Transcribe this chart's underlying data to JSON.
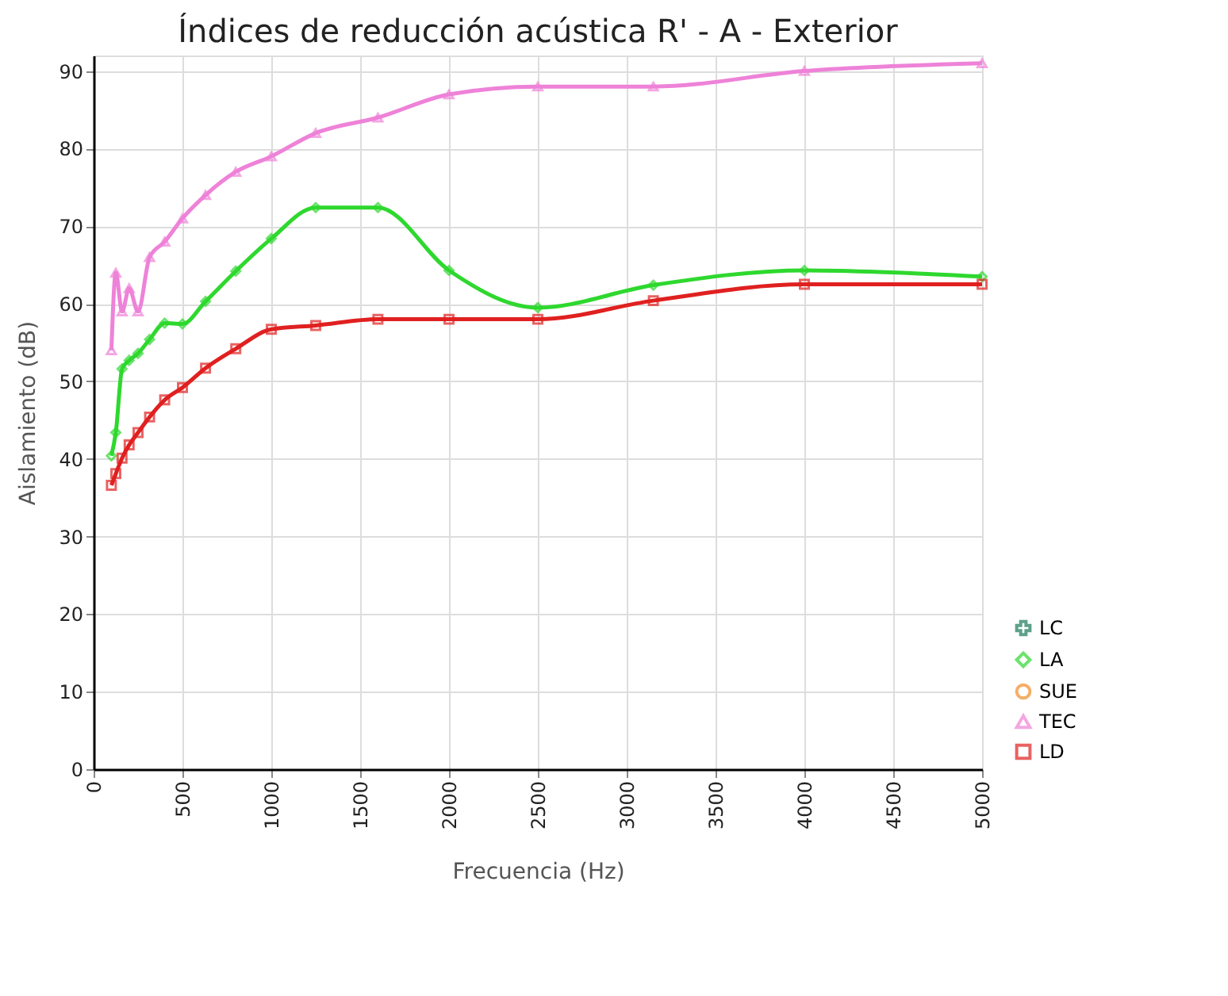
{
  "chart_data": {
    "type": "line",
    "title": "Índices de reducción acústica R' - A - Exterior",
    "xlabel": "Frecuencia (Hz)",
    "ylabel": "Aislamiento (dB)",
    "x": [
      100,
      125,
      160,
      200,
      250,
      315,
      400,
      500,
      630,
      800,
      1000,
      1250,
      1600,
      2000,
      2500,
      3150,
      4000,
      5000
    ],
    "series": [
      {
        "name": "LC",
        "color": "#1a7a5a",
        "marker": "cross",
        "values": [
          null,
          null,
          null,
          null,
          null,
          null,
          null,
          null,
          null,
          null,
          null,
          null,
          null,
          null,
          null,
          null,
          null,
          null
        ]
      },
      {
        "name": "LA",
        "color": "#2ed82e",
        "marker": "diamond",
        "values": [
          40.4,
          43.4,
          51.6,
          52.7,
          53.6,
          55.4,
          57.5,
          57.4,
          60.3,
          64.2,
          68.4,
          72.4,
          72.4,
          64.3,
          59.5,
          62.4,
          64.3,
          63.5
        ]
      },
      {
        "name": "SUE",
        "color": "#f28c28",
        "marker": "circle",
        "values": [
          null,
          null,
          null,
          null,
          null,
          null,
          null,
          null,
          null,
          null,
          null,
          null,
          null,
          null,
          null,
          null,
          null,
          null
        ]
      },
      {
        "name": "TEC",
        "color": "#ee82d8",
        "marker": "triangle",
        "values": [
          54,
          64,
          59,
          62,
          59,
          66,
          68,
          71,
          74,
          77,
          79,
          82,
          84,
          87,
          88,
          88,
          90,
          91
        ]
      },
      {
        "name": "LD",
        "color": "#e02020",
        "marker": "square",
        "values": [
          36.6,
          38.1,
          40.1,
          41.8,
          43.4,
          45.4,
          47.6,
          49.2,
          51.7,
          54.2,
          56.7,
          57.2,
          58,
          58,
          58,
          60.4,
          62.5,
          62.5
        ]
      }
    ],
    "xlim": [
      0,
      5000
    ],
    "xticks": [
      0,
      500,
      1000,
      1500,
      2000,
      2500,
      3000,
      3500,
      4000,
      4500,
      5000
    ],
    "ylim": [
      0,
      92
    ],
    "yticks": [
      0,
      10,
      20,
      30,
      40,
      50,
      60,
      70,
      80,
      90
    ],
    "grid": true,
    "legend": "bottom right",
    "line_style": "solid"
  }
}
